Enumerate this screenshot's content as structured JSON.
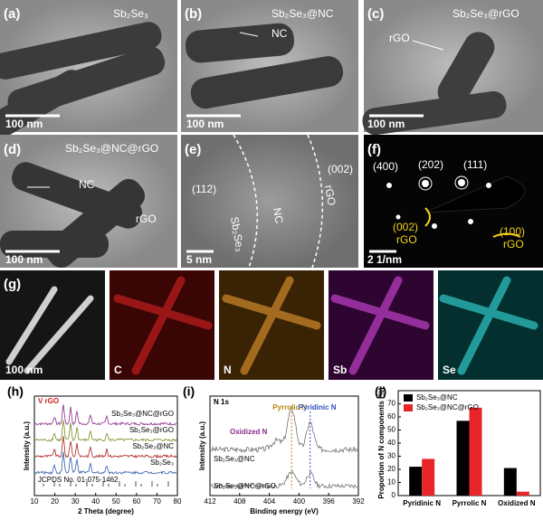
{
  "panels": {
    "a": {
      "label": "(a)",
      "title": "Sb₂Se₃",
      "scale": "100 nm"
    },
    "b": {
      "label": "(b)",
      "title": "Sb₂Se₃@NC",
      "note": "NC",
      "scale": "100 nm"
    },
    "c": {
      "label": "(c)",
      "title": "Sb₂Se₃@rGO",
      "note": "rGO",
      "scale": "100 nm"
    },
    "d": {
      "label": "(d)",
      "title": "Sb₂Se₃@NC@rGO",
      "note1": "NC",
      "note2": "rGO",
      "scale": "100 nm"
    },
    "e": {
      "label": "(e)",
      "plane1": "(112)",
      "region1": "Sb₂Se₃",
      "region2": "NC",
      "region3": "rGO",
      "plane2": "(002)",
      "scale": "5 nm"
    },
    "f": {
      "label": "(f)",
      "ring1": "(400)",
      "ring2": "(202)",
      "ring3": "(111)",
      "ring4": "(002)",
      "ring4b": "rGO",
      "ring5": "(100)",
      "ring5b": "rGO",
      "scale": "2 1/nm"
    },
    "g": {
      "label": "(g)",
      "scale": "100 nm",
      "maps": [
        "C",
        "N",
        "Sb",
        "Se"
      ]
    }
  },
  "xrd": {
    "label": "(h)",
    "marker": "V rGO",
    "traces": [
      "Sb₂Se₃@NC@rGO",
      "Sb₂Se₃@rGO",
      "Sb₂Se₃@NC",
      "Sb₂Se₃"
    ],
    "reference": "JCPDS No. 01-075-1462",
    "xlabel": "2 Theta (degree)",
    "ylabel": "Intensity (a.u.)",
    "xlim": [
      10,
      80
    ],
    "xticks": [
      10,
      20,
      30,
      40,
      50,
      60,
      70,
      80
    ]
  },
  "xps": {
    "label": "(i)",
    "title": "N 1s",
    "peaks": [
      "Pyrrolic N",
      "Pyridinic N",
      "Oxidized N"
    ],
    "traces": [
      "Sb₂Se₃@NC",
      "Sb₂Se₃@NC@rGO"
    ],
    "xlabel": "Binding energy (eV)",
    "ylabel": "Intensity (a.u.)",
    "xlim": [
      412,
      392
    ],
    "xticks": [
      412,
      408,
      404,
      400,
      396,
      392
    ]
  },
  "chart_data": {
    "type": "bar",
    "label": "(j)",
    "categories": [
      "Pyridinic N",
      "Pyrrolic N",
      "Oxidized N"
    ],
    "series": [
      {
        "name": "Sb₂Se₃@NC",
        "color": "#000000",
        "values": [
          22,
          57,
          21
        ]
      },
      {
        "name": "Sb₂Se₃@NC@rGO",
        "color": "#e8262a",
        "values": [
          28,
          67,
          3
        ]
      }
    ],
    "ylabel": "Proportion of N components (%)",
    "ylim": [
      0,
      80
    ],
    "yticks": [
      0,
      10,
      20,
      30,
      40,
      50,
      60,
      70
    ],
    "legend": "upper left"
  }
}
